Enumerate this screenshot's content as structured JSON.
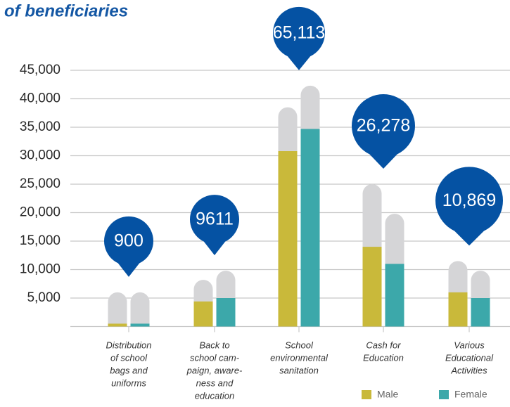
{
  "chart_data": {
    "type": "bar",
    "title": "of beneficiaries",
    "categories": [
      [
        "Distribution",
        "of school",
        "bags and",
        "uniforms"
      ],
      [
        "Back to",
        "school cam-",
        "paign, aware-",
        "ness and",
        "education"
      ],
      [
        "School",
        "environmental",
        "sanitation"
      ],
      [
        "Cash for",
        "Education"
      ],
      [
        "Various",
        "Educational",
        "Activities"
      ]
    ],
    "series": [
      {
        "name": "Male",
        "color": "#c9b93a",
        "values": [
          500,
          4400,
          30800,
          14000,
          6000
        ]
      },
      {
        "name": "Female",
        "color": "#3ca8aa",
        "values": [
          500,
          5000,
          34700,
          11000,
          5000
        ]
      }
    ],
    "background_values": [
      [
        6000,
        6000
      ],
      [
        8200,
        9800
      ],
      [
        38500,
        42300
      ],
      [
        25000,
        19800
      ],
      [
        11500,
        9800
      ]
    ],
    "background_color": "#d5d5d7",
    "totals": [
      900,
      9611,
      65113,
      26278,
      10869
    ],
    "total_labels": [
      "900",
      "9611",
      "65,113",
      "26,278",
      "10,869"
    ],
    "total_color": "#0552a3",
    "ylim": [
      0,
      45000
    ],
    "yticks": [
      {
        "value": 5000,
        "label": "5,000"
      },
      {
        "value": 10000,
        "label": "10,000"
      },
      {
        "value": 15000,
        "label": "15,000"
      },
      {
        "value": 20000,
        "label": "20,000"
      },
      {
        "value": 25000,
        "label": "25,000"
      },
      {
        "value": 30000,
        "label": "30,000"
      },
      {
        "value": 35000,
        "label": "35,000"
      },
      {
        "value": 40000,
        "label": "40,000"
      },
      {
        "value": 45000,
        "label": "45,000"
      }
    ],
    "grid": true,
    "legend": "bottom-right"
  }
}
